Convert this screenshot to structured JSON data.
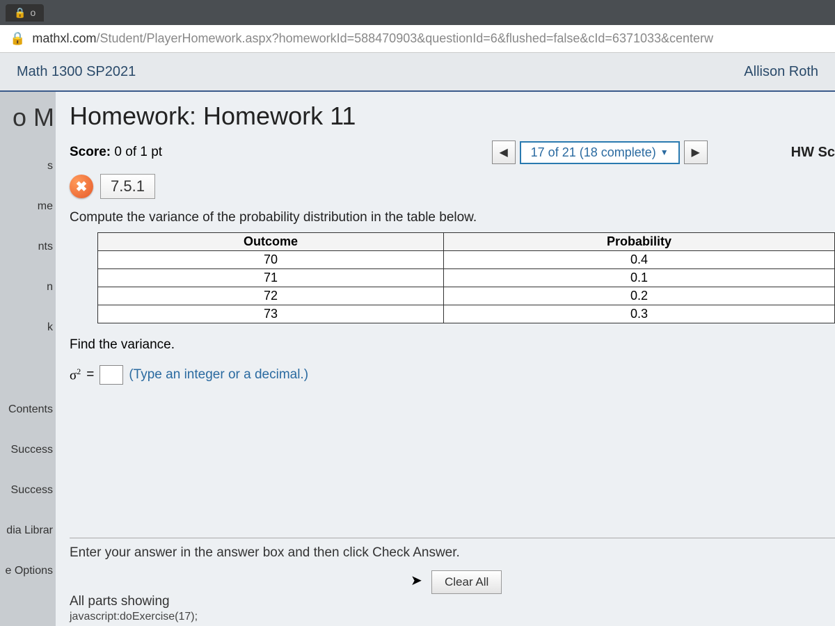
{
  "browser": {
    "tab_label": "o",
    "url_host": "mathxl.com",
    "url_path": "/Student/PlayerHomework.aspx?homeworkId=588470903&questionId=6&flushed=false&cId=6371033&centerw"
  },
  "course": {
    "name": "Math 1300 SP2021",
    "user": "Allison Roth"
  },
  "sidebar": {
    "items": [
      "o M",
      "s",
      "me",
      "nts",
      "n",
      "k",
      "Contents",
      "Success",
      "Success",
      "dia Librar",
      "e Options"
    ]
  },
  "homework": {
    "title": "Homework: Homework 11",
    "score_label": "Score:",
    "score_value": "0 of 1 pt",
    "progress": "17 of 21 (18 complete)",
    "hw_score_label": "HW Sc",
    "question_status_icon": "✖",
    "question_number": "7.5.1",
    "prompt": "Compute the variance of the probability distribution in the table below.",
    "table": {
      "columns": [
        "Outcome",
        "Probability"
      ],
      "rows": [
        [
          "70",
          "0.4"
        ],
        [
          "71",
          "0.1"
        ],
        [
          "72",
          "0.2"
        ],
        [
          "73",
          "0.3"
        ]
      ]
    },
    "find_label": "Find the variance.",
    "sigma_label": "σ",
    "equals": "=",
    "hint": "(Type an integer or a decimal.)",
    "instruction": "Enter your answer in the answer box and then click Check Answer.",
    "clear_all": "Clear All",
    "parts_showing": "All parts showing",
    "js_status": "javascript:doExercise(17);"
  }
}
